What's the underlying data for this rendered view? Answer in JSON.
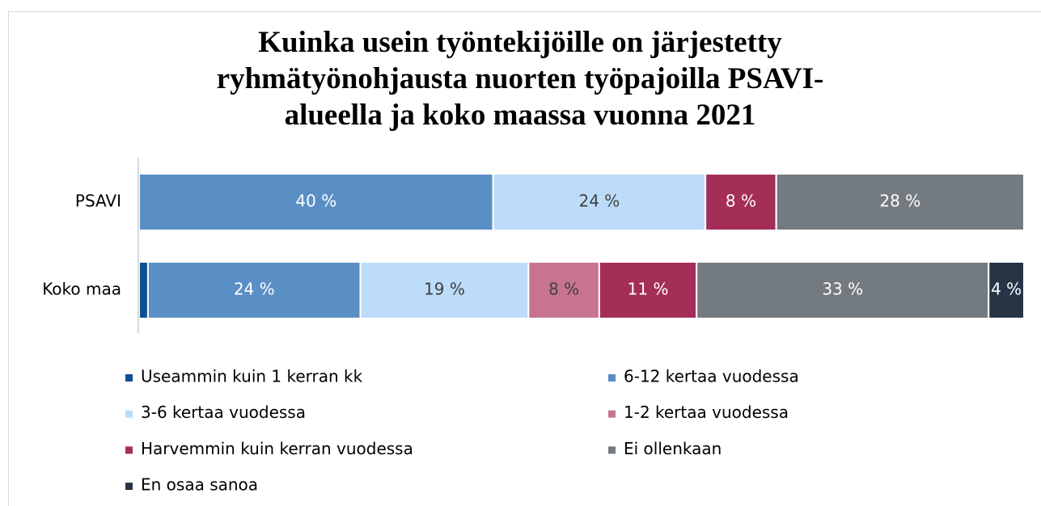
{
  "chart_data": {
    "type": "stacked_barh",
    "title": "Kuinka usein työntekijöille on järjestetty ryhmätyönohjausta nuorten työpajoilla PSAVI-alueella ja koko maassa vuonna 2021",
    "categories": [
      "PSAVI",
      "Koko maa"
    ],
    "xlim": [
      0,
      100
    ],
    "series": [
      {
        "name": "Useammin kuin 1 kerran kk",
        "color": "#0f4f92",
        "label_color": "#ffffff",
        "values": [
          0,
          1
        ],
        "value_labels": [
          null,
          null
        ]
      },
      {
        "name": "6-12 kertaa vuodessa",
        "color": "#5a8fc6",
        "label_color": "#ffffff",
        "values": [
          40,
          24
        ],
        "value_labels": [
          "40 %",
          "24 %"
        ]
      },
      {
        "name": "3-6 kertaa vuodessa",
        "color": "#bddcf9",
        "label_color": "#404040",
        "values": [
          24,
          19
        ],
        "value_labels": [
          "24 %",
          "19 %"
        ]
      },
      {
        "name": "1-2 kertaa vuodessa",
        "color": "#c8748e",
        "label_color": "#404040",
        "values": [
          0,
          8
        ],
        "value_labels": [
          null,
          "8 %"
        ]
      },
      {
        "name": "Harvemmin kuin kerran vuodessa",
        "color": "#a42e58",
        "label_color": "#ffffff",
        "values": [
          8,
          11
        ],
        "value_labels": [
          "8 %",
          "11 %"
        ]
      },
      {
        "name": "Ei ollenkaan",
        "color": "#737a80",
        "label_color": "#ffffff",
        "values": [
          28,
          33
        ],
        "value_labels": [
          "28 %",
          "33 %"
        ]
      },
      {
        "name": "En osaa sanoa",
        "color": "#263446",
        "label_color": "#ffffff",
        "values": [
          0,
          4
        ],
        "value_labels": [
          null,
          "4 %"
        ]
      }
    ]
  }
}
